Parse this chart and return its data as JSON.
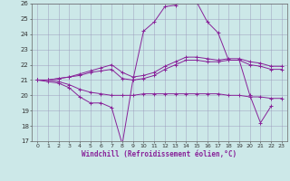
{
  "xlabel": "Windchill (Refroidissement éolien,°C)",
  "background_color": "#cce8e8",
  "grid_color": "#aabbcc",
  "line_color": "#882299",
  "xlim": [
    -0.5,
    23.5
  ],
  "ylim": [
    17,
    26
  ],
  "xticks": [
    0,
    1,
    2,
    3,
    4,
    5,
    6,
    7,
    8,
    9,
    10,
    11,
    12,
    13,
    14,
    15,
    16,
    17,
    18,
    19,
    20,
    21,
    22,
    23
  ],
  "yticks": [
    17,
    18,
    19,
    20,
    21,
    22,
    23,
    24,
    25,
    26
  ],
  "series": [
    {
      "x": [
        0,
        1,
        2,
        3,
        4,
        5,
        6,
        7,
        8,
        9,
        10,
        11,
        12,
        13,
        14,
        15,
        16,
        17,
        18,
        19,
        20,
        21,
        22
      ],
      "y": [
        21.0,
        20.9,
        20.8,
        20.5,
        19.9,
        19.5,
        19.5,
        19.2,
        16.8,
        21.0,
        24.2,
        24.8,
        25.8,
        25.9,
        26.3,
        26.1,
        24.8,
        24.1,
        22.3,
        22.3,
        20.0,
        18.2,
        19.3
      ]
    },
    {
      "x": [
        0,
        1,
        2,
        3,
        4,
        5,
        6,
        7,
        8,
        9,
        10,
        11,
        12,
        13,
        14,
        15,
        16,
        17,
        18,
        19,
        20,
        21,
        22,
        23
      ],
      "y": [
        21.0,
        21.0,
        21.1,
        21.2,
        21.3,
        21.5,
        21.6,
        21.7,
        21.1,
        21.0,
        21.1,
        21.3,
        21.7,
        22.0,
        22.3,
        22.3,
        22.2,
        22.2,
        22.3,
        22.3,
        22.0,
        21.9,
        21.7,
        21.7
      ]
    },
    {
      "x": [
        0,
        1,
        2,
        3,
        4,
        5,
        6,
        7,
        8,
        9,
        10,
        11,
        12,
        13,
        14,
        15,
        16,
        17,
        18,
        19,
        20,
        21,
        22,
        23
      ],
      "y": [
        21.0,
        21.0,
        21.1,
        21.2,
        21.4,
        21.6,
        21.8,
        22.0,
        21.5,
        21.2,
        21.3,
        21.5,
        21.9,
        22.2,
        22.5,
        22.5,
        22.4,
        22.3,
        22.4,
        22.4,
        22.2,
        22.1,
        21.9,
        21.9
      ]
    },
    {
      "x": [
        0,
        1,
        2,
        3,
        4,
        5,
        6,
        7,
        8,
        9,
        10,
        11,
        12,
        13,
        14,
        15,
        16,
        17,
        18,
        19,
        20,
        21,
        22,
        23
      ],
      "y": [
        21.0,
        21.0,
        20.9,
        20.7,
        20.4,
        20.2,
        20.1,
        20.0,
        20.0,
        20.0,
        20.1,
        20.1,
        20.1,
        20.1,
        20.1,
        20.1,
        20.1,
        20.1,
        20.0,
        20.0,
        19.9,
        19.9,
        19.8,
        19.8
      ]
    }
  ]
}
